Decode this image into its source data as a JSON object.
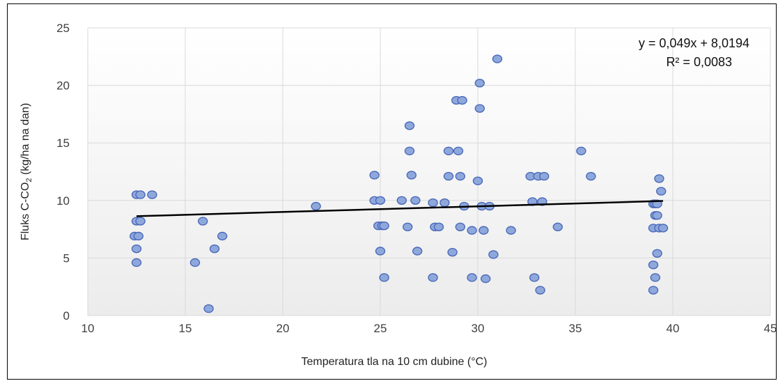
{
  "chart_data": {
    "type": "scatter",
    "title": "",
    "xlabel": "Temperatura tla na 10 cm dubine (°C)",
    "ylabel_main": "Fluks C-CO",
    "ylabel_sub": "2",
    "ylabel_unit": " (kg/ha na dan)",
    "xlim": [
      10,
      45
    ],
    "ylim": [
      0,
      25
    ],
    "xticks": [
      10,
      15,
      20,
      25,
      30,
      35,
      40,
      45
    ],
    "yticks": [
      0,
      5,
      10,
      15,
      20,
      25
    ],
    "grid": true,
    "legend": "none",
    "colors": {
      "marker_fill": "#8fa8dc",
      "marker_stroke": "#4a6ab8",
      "trendline": "#000000",
      "grid": "#d9d9d9"
    },
    "trendline": {
      "equation": "y = 0,049x + 8,0194",
      "r2": "R² = 0,0083",
      "slope": 0.049,
      "intercept": 8.0194,
      "x_range": [
        12.5,
        39.5
      ]
    },
    "points": [
      [
        12.5,
        10.5
      ],
      [
        12.7,
        10.5
      ],
      [
        13.3,
        10.5
      ],
      [
        12.5,
        8.2
      ],
      [
        12.7,
        8.2
      ],
      [
        12.4,
        6.9
      ],
      [
        12.6,
        6.9
      ],
      [
        12.5,
        5.8
      ],
      [
        12.5,
        4.6
      ],
      [
        15.5,
        4.6
      ],
      [
        15.9,
        8.2
      ],
      [
        16.2,
        0.6
      ],
      [
        16.5,
        5.8
      ],
      [
        16.9,
        6.9
      ],
      [
        21.7,
        9.5
      ],
      [
        24.7,
        12.2
      ],
      [
        24.7,
        10.0
      ],
      [
        24.9,
        7.8
      ],
      [
        25.0,
        10.0
      ],
      [
        25.1,
        7.8
      ],
      [
        25.2,
        7.8
      ],
      [
        25.0,
        5.6
      ],
      [
        25.2,
        3.3
      ],
      [
        26.1,
        10.0
      ],
      [
        26.4,
        7.7
      ],
      [
        26.5,
        16.5
      ],
      [
        26.5,
        14.3
      ],
      [
        26.6,
        12.2
      ],
      [
        26.8,
        10.0
      ],
      [
        26.9,
        5.6
      ],
      [
        27.7,
        9.8
      ],
      [
        27.7,
        3.3
      ],
      [
        27.8,
        7.7
      ],
      [
        28.0,
        7.7
      ],
      [
        28.3,
        9.8
      ],
      [
        28.5,
        14.3
      ],
      [
        28.5,
        12.1
      ],
      [
        28.7,
        5.5
      ],
      [
        28.9,
        18.7
      ],
      [
        29.0,
        14.3
      ],
      [
        29.1,
        12.1
      ],
      [
        29.1,
        7.7
      ],
      [
        29.2,
        18.7
      ],
      [
        29.3,
        9.5
      ],
      [
        29.7,
        7.4
      ],
      [
        29.7,
        3.3
      ],
      [
        30.0,
        11.7
      ],
      [
        30.1,
        18.0
      ],
      [
        30.1,
        20.2
      ],
      [
        30.2,
        9.5
      ],
      [
        30.3,
        7.4
      ],
      [
        30.4,
        3.2
      ],
      [
        30.6,
        9.5
      ],
      [
        30.8,
        5.3
      ],
      [
        31.0,
        22.3
      ],
      [
        31.7,
        7.4
      ],
      [
        32.7,
        12.1
      ],
      [
        32.8,
        9.9
      ],
      [
        32.9,
        3.3
      ],
      [
        33.1,
        12.1
      ],
      [
        33.2,
        2.2
      ],
      [
        33.3,
        9.9
      ],
      [
        33.4,
        12.1
      ],
      [
        34.1,
        7.7
      ],
      [
        35.3,
        14.3
      ],
      [
        35.8,
        12.1
      ],
      [
        39.0,
        9.7
      ],
      [
        39.0,
        7.6
      ],
      [
        39.0,
        4.4
      ],
      [
        39.0,
        2.2
      ],
      [
        39.1,
        9.7
      ],
      [
        39.1,
        8.7
      ],
      [
        39.1,
        3.3
      ],
      [
        39.2,
        9.7
      ],
      [
        39.2,
        8.7
      ],
      [
        39.2,
        5.4
      ],
      [
        39.3,
        11.9
      ],
      [
        39.3,
        7.6
      ],
      [
        39.4,
        10.8
      ],
      [
        39.5,
        7.6
      ]
    ]
  }
}
